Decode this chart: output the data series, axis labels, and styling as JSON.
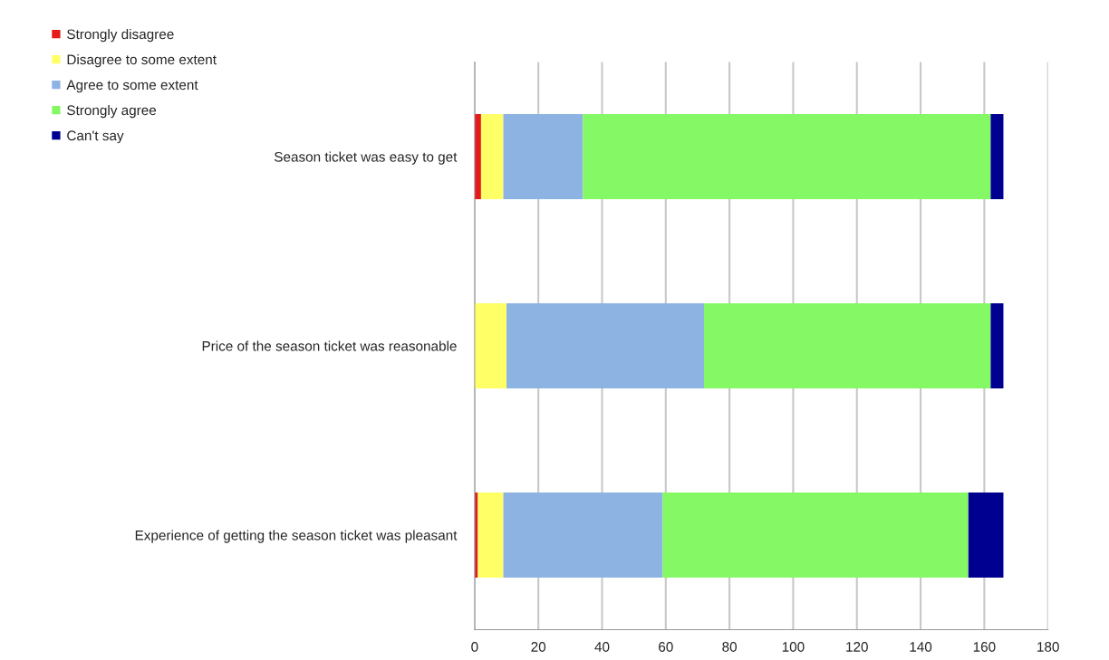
{
  "chart_data": {
    "type": "bar",
    "orientation": "horizontal",
    "stacked": true,
    "categories": [
      "Season ticket was easy to get",
      "Price of the season ticket was reasonable",
      "Experience of getting the season ticket was pleasant"
    ],
    "series": [
      {
        "name": "Strongly disagree",
        "color": "#e41a1c",
        "values": [
          2,
          0,
          1
        ]
      },
      {
        "name": "Disagree to some extent",
        "color": "#ffff66",
        "values": [
          7,
          10,
          8
        ]
      },
      {
        "name": "Agree to some extent",
        "color": "#8db3e2",
        "values": [
          25,
          62,
          50
        ]
      },
      {
        "name": "Strongly agree",
        "color": "#84f865",
        "values": [
          128,
          90,
          96
        ]
      },
      {
        "name": "Can't say",
        "color": "#000090",
        "values": [
          4,
          4,
          11
        ]
      }
    ],
    "xlim": [
      0,
      180
    ],
    "xticks": [
      0,
      20,
      40,
      60,
      80,
      100,
      120,
      140,
      160,
      180
    ],
    "grid": "x",
    "legend": "top left"
  }
}
